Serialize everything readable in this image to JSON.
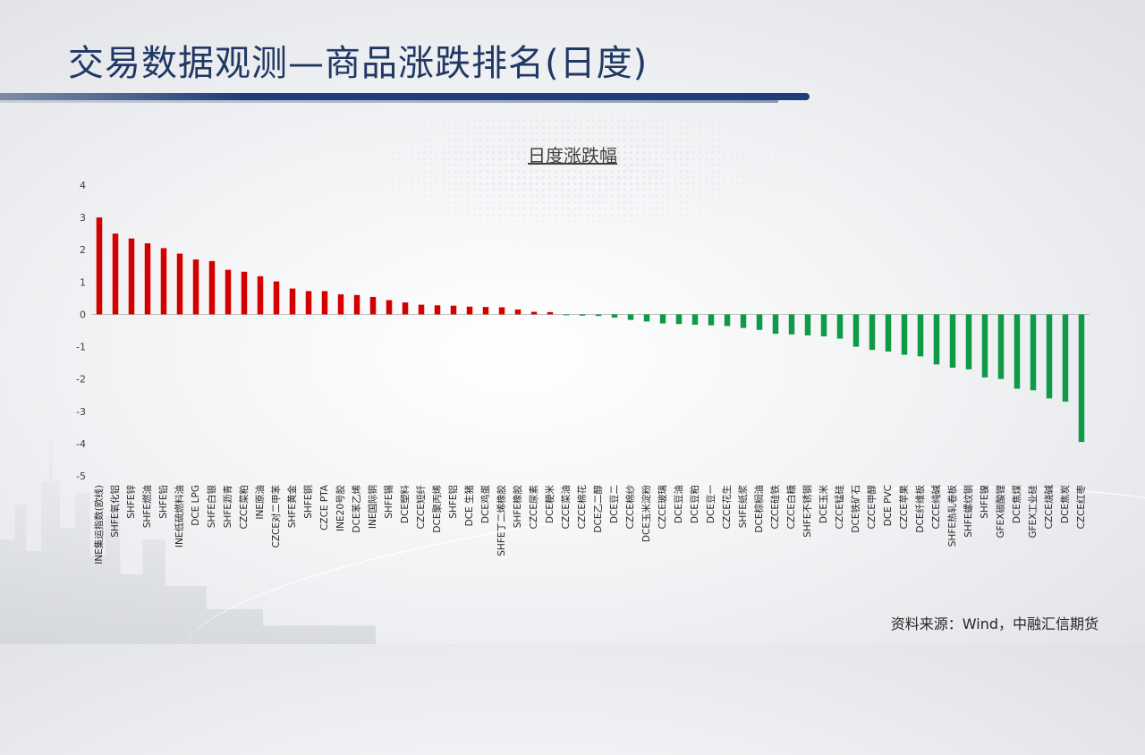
{
  "slide": {
    "title": "交易数据观测—商品涨跌排名(日度)",
    "source": "资料来源：Wind，中融汇信期货"
  },
  "colors": {
    "up": "#d40000",
    "down": "#109a48",
    "title": "#203864",
    "rule": "#1f3d7a"
  },
  "chart_data": {
    "type": "bar",
    "title": "日度涨跌幅",
    "xlabel": "",
    "ylabel": "",
    "ylim": [
      -5,
      4
    ],
    "yticks": [
      4,
      3,
      2,
      1,
      0,
      -1,
      -2,
      -3,
      -4,
      -5
    ],
    "grid": false,
    "legend": "none",
    "categories": [
      "INE集运指数(欧线)",
      "SHFE氧化铝",
      "SHFE锌",
      "SHFE燃油",
      "SHFE铅",
      "INE低硫燃料油",
      "DCE LPG",
      "SHFE白银",
      "SHFE沥青",
      "CZCE菜粕",
      "INE原油",
      "CZCE对二甲苯",
      "SHFE黄金",
      "SHFE铜",
      "CZCE PTA",
      "INE20号胶",
      "DCE苯乙烯",
      "INE国际铜",
      "SHFE锡",
      "DCE塑料",
      "CZCE短纤",
      "DCE聚丙烯",
      "SHFE铝",
      "DCE 生猪",
      "DCE鸡蛋",
      "SHFE丁二烯橡胶",
      "SHFE橡胶",
      "CZCE尿素",
      "DCE粳米",
      "CZCE菜油",
      "CZCE棉花",
      "DCE乙二醇",
      "DCE豆二",
      "CZCE棉纱",
      "DCE玉米淀粉",
      "CZCE玻璃",
      "DCE豆油",
      "DCE豆粕",
      "DCE豆一",
      "CZCE花生",
      "SHFE纸浆",
      "DCE棕榈油",
      "CZCE硅铁",
      "CZCE白糖",
      "SHFE不锈钢",
      "DCE玉米",
      "CZCE锰硅",
      "DCE铁矿石",
      "CZCE甲醇",
      "DCE PVC",
      "CZCE苹果",
      "DCE纤维板",
      "CZCE纯碱",
      "SHFE热轧卷板",
      "SHFE螺纹钢",
      "SHFE镍",
      "GFEX碳酸锂",
      "DCE焦煤",
      "GFEX工业硅",
      "CZCE烧碱",
      "DCE焦炭",
      "CZCE红枣"
    ],
    "values": [
      3.0,
      2.5,
      2.35,
      2.2,
      2.05,
      1.88,
      1.7,
      1.65,
      1.38,
      1.32,
      1.18,
      1.02,
      0.8,
      0.72,
      0.72,
      0.62,
      0.6,
      0.54,
      0.44,
      0.37,
      0.3,
      0.28,
      0.27,
      0.24,
      0.23,
      0.22,
      0.15,
      0.08,
      0.07,
      -0.02,
      -0.04,
      -0.05,
      -0.1,
      -0.17,
      -0.22,
      -0.28,
      -0.3,
      -0.32,
      -0.34,
      -0.36,
      -0.42,
      -0.48,
      -0.6,
      -0.62,
      -0.65,
      -0.68,
      -0.75,
      -1.0,
      -1.1,
      -1.15,
      -1.25,
      -1.3,
      -1.55,
      -1.65,
      -1.7,
      -1.95,
      -2.0,
      -2.3,
      -2.35,
      -2.6,
      -2.7,
      -3.95
    ]
  }
}
